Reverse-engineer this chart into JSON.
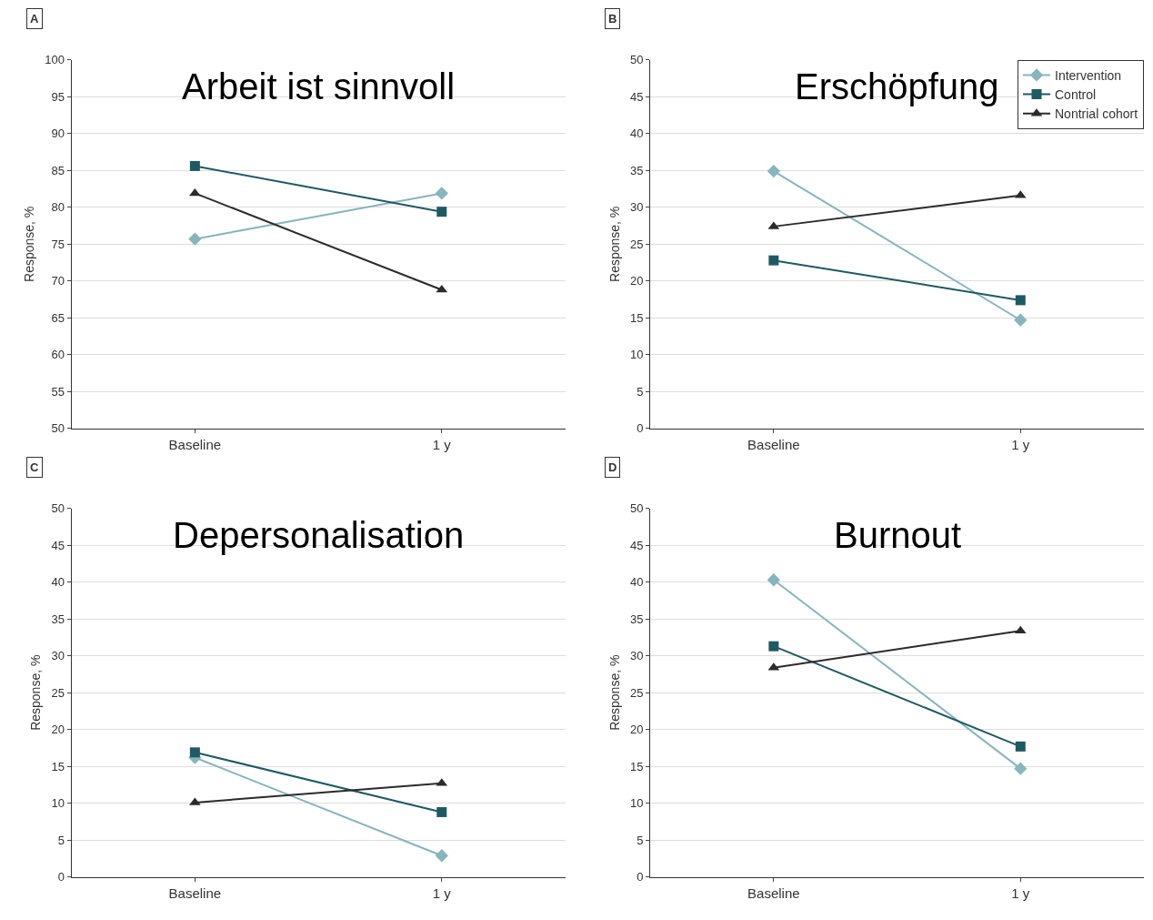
{
  "chart_data": [
    {
      "type": "line",
      "title": "Arbeit ist sinnvoll",
      "annotations": [
        "A"
      ],
      "ylabel": "Response, %",
      "categories": [
        "Baseline",
        "1 y"
      ],
      "ylim": [
        50,
        100
      ],
      "yticks": [
        50,
        55,
        60,
        65,
        70,
        75,
        80,
        85,
        90,
        95,
        100
      ],
      "grid": "y",
      "legend": false,
      "line_style": "solid",
      "series": [
        {
          "color": "#86b5bd",
          "marker": "diamond",
          "values": [
            75.7,
            81.9
          ]
        },
        {
          "color": "#1f5a63",
          "marker": "square",
          "values": [
            85.6,
            79.4
          ]
        },
        {
          "color": "#2b2b2b",
          "marker": "triangle",
          "values": [
            81.9,
            68.8
          ]
        }
      ]
    },
    {
      "type": "line",
      "title": "Erschöpfung",
      "annotations": [
        "B"
      ],
      "ylabel": "Response, %",
      "categories": [
        "Baseline",
        "1 y"
      ],
      "ylim": [
        0,
        50
      ],
      "yticks": [
        0,
        5,
        10,
        15,
        20,
        25,
        30,
        35,
        40,
        45,
        50
      ],
      "grid": "y",
      "legend": "top right",
      "line_style": "solid",
      "series": [
        {
          "name": "Intervention",
          "color": "#86b5bd",
          "marker": "diamond",
          "values": [
            34.9,
            14.7
          ]
        },
        {
          "name": "Control",
          "color": "#1f5a63",
          "marker": "square",
          "values": [
            22.8,
            17.4
          ]
        },
        {
          "name": "Nontrial cohort",
          "color": "#2b2b2b",
          "marker": "triangle",
          "values": [
            27.4,
            31.6
          ]
        }
      ]
    },
    {
      "type": "line",
      "title": "Depersonalisation",
      "annotations": [
        "C"
      ],
      "ylabel": "Response, %",
      "categories": [
        "Baseline",
        "1 y"
      ],
      "ylim": [
        0,
        50
      ],
      "yticks": [
        0,
        5,
        10,
        15,
        20,
        25,
        30,
        35,
        40,
        45,
        50
      ],
      "grid": "y",
      "legend": false,
      "line_style": "solid",
      "series": [
        {
          "color": "#86b5bd",
          "marker": "diamond",
          "values": [
            16.2,
            2.9
          ]
        },
        {
          "color": "#1f5a63",
          "marker": "square",
          "values": [
            16.9,
            8.8
          ]
        },
        {
          "color": "#2b2b2b",
          "marker": "triangle",
          "values": [
            10.1,
            12.7
          ]
        }
      ]
    },
    {
      "type": "line",
      "title": "Burnout",
      "annotations": [
        "D"
      ],
      "ylabel": "Response, %",
      "categories": [
        "Baseline",
        "1 y"
      ],
      "ylim": [
        0,
        50
      ],
      "yticks": [
        0,
        5,
        10,
        15,
        20,
        25,
        30,
        35,
        40,
        45,
        50
      ],
      "grid": "y",
      "legend": false,
      "line_style": "solid",
      "series": [
        {
          "color": "#86b5bd",
          "marker": "diamond",
          "values": [
            40.3,
            14.7
          ]
        },
        {
          "color": "#1f5a63",
          "marker": "square",
          "values": [
            31.3,
            17.7
          ]
        },
        {
          "color": "#2b2b2b",
          "marker": "triangle",
          "values": [
            28.4,
            33.4
          ]
        }
      ]
    }
  ]
}
